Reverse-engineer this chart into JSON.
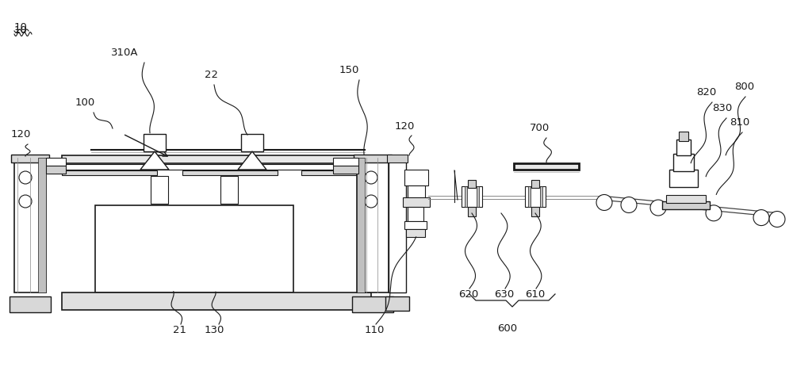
{
  "bg_color": "#ffffff",
  "lc": "#1a1a1a",
  "fig_w": 10.0,
  "fig_h": 4.64,
  "dpi": 100,
  "xlim": [
    0,
    1000
  ],
  "ylim": [
    0,
    464
  ]
}
